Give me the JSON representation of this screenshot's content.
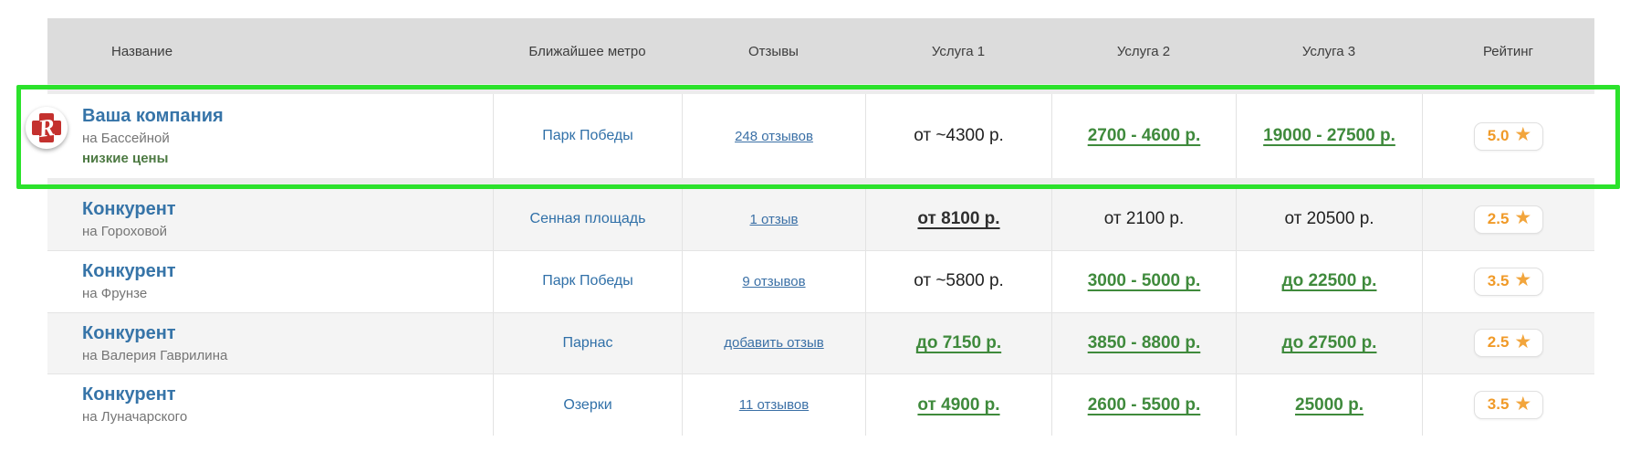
{
  "table": {
    "columns": {
      "name": "Название",
      "metro": "Ближайшее метро",
      "reviews": "Отзывы",
      "service1": "Услуга 1",
      "service2": "Услуга 2",
      "service3": "Услуга 3",
      "rating": "Рейтинг"
    },
    "rating_star": "★",
    "logo_letter": "R",
    "colors": {
      "highlight_green": "#2be22b",
      "price_green": "#3f8a3c",
      "link_blue": "#3b70a6",
      "name_blue": "#3674a8",
      "rating_orange": "#f09a28",
      "header_bg": "#dcdcdc",
      "row_alt_bg": "#f4f4f4"
    },
    "rows": [
      {
        "name": "Ваша компания",
        "address": "на Бассейной",
        "note": "низкие цены",
        "metro": "Парк Победы",
        "reviews": "248 отзывов",
        "service1": "от ~4300 р.",
        "service2": "2700 - 4600 р.",
        "service3": "19000 - 27500 р.",
        "rating": "5.0"
      },
      {
        "name": "Конкурент",
        "address": "на Гороховой",
        "metro": "Сенная площадь",
        "reviews": "1 отзыв",
        "service1": "от 8100 р.",
        "service2": "от 2100 р.",
        "service3": "от 20500 р.",
        "rating": "2.5"
      },
      {
        "name": "Конкурент",
        "address": "на Фрунзе",
        "metro": "Парк Победы",
        "reviews": "9 отзывов",
        "service1": "от ~5800 р.",
        "service2": "3000 - 5000 р.",
        "service3": "до 22500 р.",
        "rating": "3.5"
      },
      {
        "name": "Конкурент",
        "address": "на Валерия Гаврилина",
        "metro": "Парнас",
        "reviews": "добавить отзыв",
        "service1": "до 7150 р.",
        "service2": "3850 - 8800 р.",
        "service3": "до 27500 р.",
        "rating": "2.5"
      },
      {
        "name": "Конкурент",
        "address": "на Луначарского",
        "metro": "Озерки",
        "reviews": "11 отзывов",
        "service1": "от 4900 р.",
        "service2": "2600 - 5500 р.",
        "service3": "25000 р.",
        "rating": "3.5"
      }
    ]
  }
}
